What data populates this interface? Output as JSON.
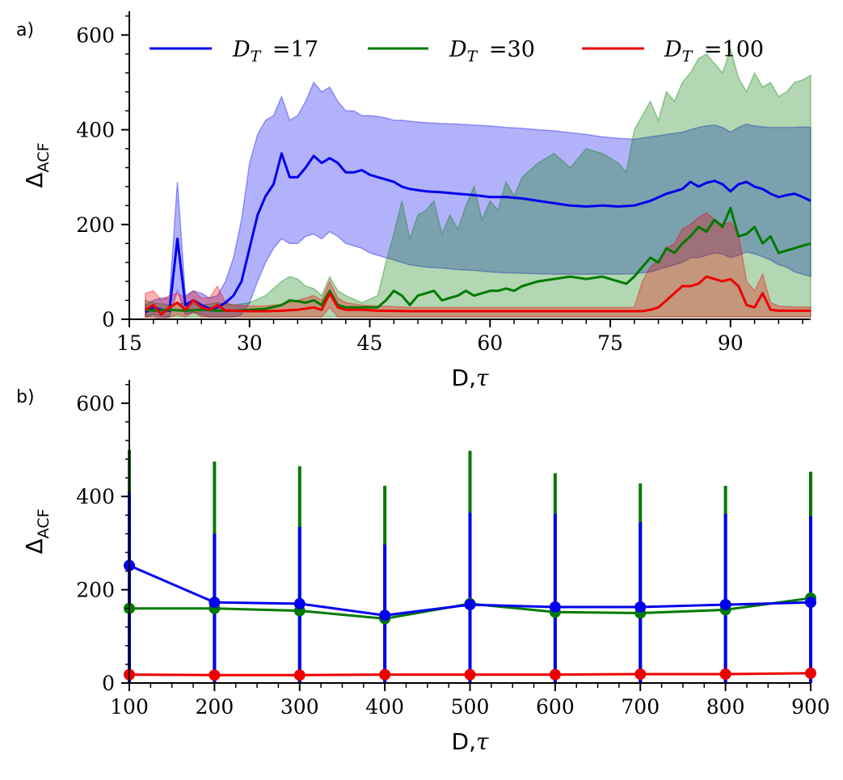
{
  "chart_data": [
    {
      "panel_label": "a)",
      "type": "line",
      "xlabel_main": "D,",
      "xlabel_greek": "τ",
      "ylabel_main": "Δ",
      "ylabel_sub": "ACF",
      "xlim": [
        15,
        100
      ],
      "ylim": [
        0,
        650
      ],
      "xticks": [
        15,
        30,
        45,
        60,
        75,
        90
      ],
      "yticks": [
        0,
        200,
        400,
        600
      ],
      "grid": false,
      "legend_position": "top",
      "shaded_band": "mean ± spread",
      "series": [
        {
          "legend_sym": "D",
          "legend_sub": "T",
          "legend_val": "=17",
          "color": "#0000ee",
          "x": [
            17,
            18,
            19,
            20,
            21,
            22,
            23,
            24,
            25,
            26,
            27,
            28,
            29,
            30,
            31,
            32,
            33,
            34,
            35,
            36,
            37,
            38,
            39,
            40,
            41,
            42,
            43,
            44,
            45,
            46,
            47,
            48,
            49,
            50,
            52,
            54,
            56,
            58,
            60,
            62,
            64,
            66,
            68,
            70,
            72,
            74,
            76,
            78,
            80,
            82,
            84,
            85,
            86,
            87,
            88,
            89,
            90,
            91,
            92,
            93,
            94,
            95,
            96,
            97,
            98,
            99,
            100
          ],
          "mean": [
            15,
            25,
            20,
            18,
            170,
            30,
            40,
            30,
            22,
            25,
            35,
            50,
            80,
            150,
            220,
            260,
            285,
            350,
            300,
            300,
            320,
            345,
            330,
            340,
            330,
            310,
            310,
            315,
            305,
            300,
            295,
            290,
            280,
            275,
            270,
            268,
            265,
            262,
            258,
            258,
            255,
            250,
            245,
            240,
            238,
            240,
            238,
            240,
            250,
            265,
            275,
            290,
            280,
            288,
            292,
            285,
            270,
            285,
            290,
            280,
            275,
            265,
            258,
            262,
            265,
            258,
            250
          ],
          "upper": [
            30,
            40,
            45,
            45,
            290,
            50,
            60,
            55,
            45,
            50,
            80,
            130,
            210,
            330,
            390,
            420,
            430,
            470,
            420,
            430,
            460,
            500,
            480,
            490,
            460,
            440,
            440,
            430,
            430,
            428,
            425,
            420,
            420,
            418,
            415,
            413,
            412,
            410,
            408,
            405,
            403,
            400,
            398,
            394,
            390,
            385,
            382,
            380,
            385,
            390,
            395,
            400,
            405,
            408,
            410,
            405,
            395,
            405,
            412,
            408,
            406,
            405,
            405,
            405,
            405,
            406,
            405
          ],
          "lower": [
            5,
            10,
            5,
            5,
            60,
            10,
            15,
            10,
            5,
            5,
            5,
            5,
            10,
            35,
            80,
            120,
            150,
            170,
            160,
            160,
            175,
            180,
            170,
            185,
            175,
            160,
            155,
            150,
            140,
            135,
            130,
            125,
            120,
            115,
            110,
            108,
            105,
            103,
            100,
            98,
            97,
            96,
            95,
            95,
            95,
            95,
            95,
            96,
            100,
            110,
            120,
            130,
            130,
            135,
            140,
            138,
            130,
            135,
            142,
            138,
            132,
            125,
            115,
            110,
            100,
            95,
            90
          ]
        },
        {
          "legend_sym": "D",
          "legend_sub": "T",
          "legend_val": "=30",
          "color": "#007a00",
          "x": [
            17,
            18,
            20,
            22,
            24,
            26,
            28,
            30,
            32,
            34,
            35,
            36,
            37,
            38,
            39,
            40,
            41,
            42,
            44,
            46,
            47,
            48,
            49,
            50,
            51,
            52,
            53,
            54,
            55,
            56,
            57,
            58,
            59,
            60,
            61,
            62,
            63,
            64,
            66,
            68,
            70,
            72,
            74,
            76,
            77,
            78,
            79,
            80,
            81,
            82,
            83,
            84,
            85,
            86,
            87,
            88,
            89,
            90,
            91,
            92,
            93,
            94,
            95,
            96,
            97,
            98,
            99,
            100
          ],
          "mean": [
            20,
            18,
            20,
            18,
            20,
            18,
            18,
            20,
            22,
            30,
            40,
            38,
            35,
            40,
            30,
            60,
            30,
            25,
            25,
            25,
            40,
            60,
            50,
            30,
            50,
            55,
            60,
            40,
            45,
            50,
            60,
            50,
            55,
            60,
            60,
            65,
            60,
            70,
            80,
            85,
            90,
            85,
            90,
            80,
            75,
            90,
            110,
            130,
            120,
            150,
            140,
            160,
            175,
            195,
            185,
            210,
            195,
            235,
            175,
            180,
            195,
            160,
            175,
            140,
            145,
            150,
            155,
            160
          ],
          "upper": [
            40,
            35,
            30,
            35,
            30,
            35,
            30,
            35,
            50,
            80,
            90,
            85,
            70,
            65,
            50,
            90,
            60,
            50,
            35,
            50,
            120,
            180,
            250,
            170,
            220,
            230,
            250,
            180,
            220,
            190,
            240,
            280,
            210,
            250,
            230,
            290,
            260,
            300,
            330,
            350,
            320,
            360,
            350,
            330,
            310,
            400,
            430,
            460,
            420,
            480,
            460,
            500,
            520,
            550,
            560,
            540,
            520,
            570,
            510,
            480,
            520,
            490,
            500,
            470,
            480,
            500,
            505,
            515
          ],
          "lower": [
            5,
            5,
            5,
            5,
            5,
            5,
            5,
            5,
            5,
            5,
            5,
            5,
            5,
            5,
            5,
            5,
            5,
            5,
            5,
            5,
            5,
            5,
            5,
            5,
            5,
            5,
            5,
            5,
            5,
            5,
            5,
            5,
            5,
            5,
            5,
            5,
            5,
            5,
            5,
            5,
            5,
            5,
            5,
            5,
            5,
            5,
            5,
            5,
            5,
            5,
            5,
            5,
            5,
            5,
            5,
            5,
            5,
            5,
            5,
            5,
            5,
            5,
            5,
            5,
            5,
            5,
            5,
            5
          ]
        },
        {
          "legend_sym": "D",
          "legend_sub": "T",
          "legend_val": "=100",
          "color": "#ee0000",
          "x": [
            17,
            18,
            19,
            20,
            21,
            22,
            23,
            24,
            25,
            26,
            27,
            28,
            30,
            32,
            34,
            36,
            38,
            39,
            40,
            41,
            42,
            44,
            46,
            50,
            55,
            60,
            65,
            70,
            75,
            78,
            79,
            80,
            81,
            82,
            83,
            84,
            85,
            86,
            87,
            88,
            89,
            90,
            91,
            92,
            93,
            94,
            95,
            96,
            98,
            100
          ],
          "mean": [
            20,
            30,
            10,
            25,
            35,
            20,
            40,
            25,
            20,
            30,
            18,
            18,
            17,
            17,
            18,
            20,
            25,
            20,
            55,
            25,
            20,
            20,
            18,
            17,
            17,
            17,
            17,
            17,
            17,
            17,
            17,
            20,
            25,
            40,
            55,
            70,
            70,
            75,
            90,
            85,
            80,
            85,
            70,
            30,
            25,
            55,
            20,
            18,
            18,
            18
          ],
          "upper": [
            55,
            60,
            40,
            50,
            55,
            45,
            60,
            45,
            45,
            70,
            35,
            30,
            28,
            28,
            32,
            40,
            50,
            40,
            80,
            45,
            35,
            30,
            28,
            25,
            25,
            25,
            25,
            25,
            25,
            25,
            80,
            110,
            125,
            150,
            160,
            190,
            200,
            215,
            225,
            210,
            200,
            205,
            180,
            80,
            60,
            95,
            35,
            28,
            26,
            26
          ],
          "lower": [
            5,
            5,
            0,
            5,
            10,
            5,
            15,
            5,
            5,
            5,
            5,
            5,
            5,
            5,
            5,
            5,
            5,
            5,
            25,
            5,
            5,
            5,
            5,
            5,
            5,
            5,
            5,
            5,
            5,
            5,
            5,
            5,
            5,
            5,
            5,
            5,
            5,
            5,
            5,
            5,
            5,
            5,
            5,
            5,
            5,
            5,
            5,
            5,
            5,
            5
          ]
        }
      ]
    },
    {
      "panel_label": "b)",
      "type": "line",
      "xlabel_main": "D,",
      "xlabel_greek": "τ",
      "ylabel_main": "Δ",
      "ylabel_sub": "ACF",
      "xlim": [
        100,
        900
      ],
      "ylim": [
        0,
        650
      ],
      "xticks": [
        100,
        200,
        300,
        400,
        500,
        600,
        700,
        800,
        900
      ],
      "yticks": [
        0,
        200,
        400,
        600
      ],
      "grid": false,
      "series": [
        {
          "color": "#007a00",
          "x": [
            100,
            200,
            300,
            400,
            500,
            600,
            700,
            800,
            900
          ],
          "values": [
            160,
            160,
            155,
            138,
            170,
            152,
            150,
            157,
            182
          ],
          "err_upper": [
            500,
            475,
            465,
            423,
            498,
            450,
            428,
            423,
            453
          ],
          "err_lower": [
            0,
            0,
            0,
            0,
            0,
            0,
            0,
            0,
            0
          ]
        },
        {
          "color": "#0000ee",
          "x": [
            100,
            200,
            300,
            400,
            500,
            600,
            700,
            800,
            900
          ],
          "values": [
            252,
            173,
            170,
            145,
            168,
            163,
            163,
            168,
            173
          ],
          "err_upper": [
            410,
            320,
            335,
            297,
            365,
            363,
            345,
            363,
            358
          ],
          "err_lower": [
            0,
            0,
            0,
            0,
            0,
            0,
            0,
            0,
            0
          ]
        },
        {
          "color": "#ee0000",
          "x": [
            100,
            200,
            300,
            400,
            500,
            600,
            700,
            800,
            900
          ],
          "values": [
            18,
            17,
            17,
            18,
            18,
            18,
            19,
            19,
            21
          ],
          "err_upper": [
            25,
            22,
            22,
            23,
            23,
            22,
            24,
            24,
            26
          ],
          "err_lower": [
            12,
            12,
            12,
            13,
            13,
            13,
            14,
            14,
            15
          ]
        }
      ]
    }
  ]
}
